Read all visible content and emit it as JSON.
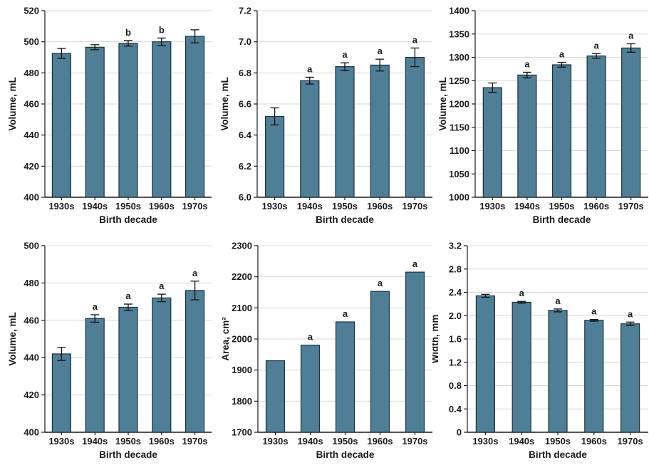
{
  "figure": {
    "colors": {
      "bar_fill": "#4e7f96",
      "bar_stroke": "#1d333d",
      "grid": "#d8d8d8",
      "axis": "#1a1a1a",
      "error_bar": "#111111",
      "text": "#1a1a1a",
      "background": "#ffffff"
    }
  },
  "chart_data": [
    {
      "type": "bar",
      "position": "top-left",
      "xlabel": "Birth decade",
      "ylabel": "Volume, mL",
      "categories": [
        "1930s",
        "1940s",
        "1950s",
        "1960s",
        "1970s"
      ],
      "values": [
        492.5,
        496.5,
        499,
        500,
        503.5
      ],
      "errors": [
        3.2,
        1.6,
        1.8,
        2.4,
        4.2
      ],
      "annotations": [
        "",
        "",
        "b",
        "b",
        ""
      ],
      "ylim": [
        400,
        520
      ],
      "ytick_values": [
        400,
        420,
        440,
        460,
        480,
        500,
        520
      ],
      "ytick_labels": [
        "400",
        "420",
        "440",
        "460",
        "480",
        "500",
        "520"
      ],
      "grid": true,
      "legend": "none"
    },
    {
      "type": "bar",
      "position": "top-middle",
      "xlabel": "Birth decade",
      "ylabel": "Volume, mL",
      "categories": [
        "1930s",
        "1940s",
        "1950s",
        "1960s",
        "1970s"
      ],
      "values": [
        6.52,
        6.75,
        6.84,
        6.85,
        6.9
      ],
      "errors": [
        0.055,
        0.022,
        0.025,
        0.038,
        0.06
      ],
      "annotations": [
        "",
        "a",
        "a",
        "a",
        "a"
      ],
      "ylim": [
        6.0,
        7.2
      ],
      "ytick_values": [
        6.0,
        6.2,
        6.4,
        6.6,
        6.8,
        7.0,
        7.2
      ],
      "ytick_labels": [
        "6.0",
        "6.2",
        "6.4",
        "6.6",
        "6.8",
        "7.0",
        "7.2"
      ],
      "grid": true,
      "legend": "none"
    },
    {
      "type": "bar",
      "position": "top-right",
      "xlabel": "Birth decade",
      "ylabel": "Volume, mL",
      "categories": [
        "1930s",
        "1940s",
        "1950s",
        "1960s",
        "1970s"
      ],
      "values": [
        1235,
        1262,
        1284,
        1303,
        1320
      ],
      "errors": [
        10,
        6,
        5,
        5,
        9
      ],
      "annotations": [
        "",
        "a",
        "a",
        "a",
        "a"
      ],
      "ylim": [
        1000,
        1400
      ],
      "ytick_values": [
        1000,
        1050,
        1100,
        1150,
        1200,
        1250,
        1300,
        1350,
        1400
      ],
      "ytick_labels": [
        "1000",
        "1050",
        "1100",
        "1150",
        "1200",
        "1250",
        "1300",
        "1350",
        "1400"
      ],
      "grid": true,
      "legend": "none"
    },
    {
      "type": "bar",
      "position": "bottom-left",
      "xlabel": "Birth decade",
      "ylabel": "Volume, mL",
      "categories": [
        "1930s",
        "1940s",
        "1950s",
        "1960s",
        "1970s"
      ],
      "values": [
        442,
        461,
        467,
        472,
        476
      ],
      "errors": [
        3.5,
        2,
        1.7,
        2,
        5
      ],
      "annotations": [
        "",
        "a",
        "a",
        "a",
        "a"
      ],
      "ylim": [
        400,
        500
      ],
      "ytick_values": [
        400,
        420,
        440,
        460,
        480,
        500
      ],
      "ytick_labels": [
        "400",
        "420",
        "440",
        "460",
        "480",
        "500"
      ],
      "grid": true,
      "legend": "none"
    },
    {
      "type": "bar",
      "position": "bottom-middle",
      "xlabel": "Birth decade",
      "ylabel": "Area, cm²",
      "categories": [
        "1930s",
        "1940s",
        "1950s",
        "1960s",
        "1970s"
      ],
      "values": [
        1930,
        1980,
        2055,
        2153,
        2215
      ],
      "errors": [
        0,
        0,
        0,
        0,
        0
      ],
      "annotations": [
        "",
        "a",
        "a",
        "a",
        "a"
      ],
      "ylim": [
        1700,
        2300
      ],
      "ytick_values": [
        1700,
        1800,
        1900,
        2000,
        2100,
        2200,
        2300
      ],
      "ytick_labels": [
        "1700",
        "1800",
        "1900",
        "2000",
        "2100",
        "2200",
        "2300"
      ],
      "grid": true,
      "legend": "none"
    },
    {
      "type": "bar",
      "position": "bottom-right",
      "xlabel": "Birth decade",
      "ylabel": "Width, mm",
      "categories": [
        "1930s",
        "1940s",
        "1950s",
        "1960s",
        "1970s"
      ],
      "values": [
        2.34,
        2.23,
        2.09,
        1.92,
        1.86
      ],
      "errors": [
        0.025,
        0.015,
        0.025,
        0.015,
        0.03
      ],
      "annotations": [
        "",
        "a",
        "a",
        "a",
        "a"
      ],
      "ylim": [
        0,
        3.2
      ],
      "ytick_values": [
        0,
        0.4,
        0.8,
        1.2,
        1.6,
        2.0,
        2.4,
        2.8,
        3.2
      ],
      "ytick_labels": [
        "0",
        "0.4",
        "0.8",
        "1.2",
        "1.6",
        "2.0",
        "2.4",
        "2.8",
        "3.2"
      ],
      "grid": true,
      "legend": "none"
    }
  ]
}
